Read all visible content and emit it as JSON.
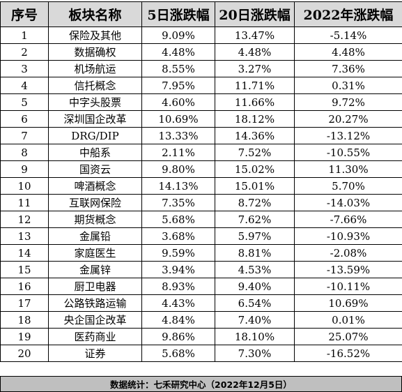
{
  "table": {
    "headers": [
      "序号",
      "板块名称",
      "5日涨跌幅",
      "20日涨跌幅",
      "2022年涨跌幅"
    ],
    "rows": [
      [
        "1",
        "保险及其他",
        "9.09%",
        "13.47%",
        "-5.14%"
      ],
      [
        "2",
        "数据确权",
        "4.48%",
        "4.48%",
        "4.48%"
      ],
      [
        "3",
        "机场航运",
        "8.55%",
        "3.27%",
        "7.36%"
      ],
      [
        "4",
        "信托概念",
        "7.95%",
        "11.71%",
        "0.31%"
      ],
      [
        "5",
        "中字头股票",
        "4.60%",
        "11.66%",
        "9.72%"
      ],
      [
        "6",
        "深圳国企改革",
        "10.69%",
        "18.12%",
        "20.27%"
      ],
      [
        "7",
        "DRG/DIP",
        "13.33%",
        "14.36%",
        "-13.12%"
      ],
      [
        "8",
        "中船系",
        "2.11%",
        "7.52%",
        "-10.55%"
      ],
      [
        "9",
        "国资云",
        "9.80%",
        "15.02%",
        "11.30%"
      ],
      [
        "10",
        "啤酒概念",
        "14.13%",
        "15.01%",
        "5.70%"
      ],
      [
        "11",
        "互联网保险",
        "7.35%",
        "8.72%",
        "-14.03%"
      ],
      [
        "12",
        "期货概念",
        "5.68%",
        "7.62%",
        "-7.66%"
      ],
      [
        "13",
        "金属铅",
        "3.68%",
        "5.97%",
        "-10.93%"
      ],
      [
        "14",
        "家庭医生",
        "9.59%",
        "8.81%",
        "-2.08%"
      ],
      [
        "15",
        "金属锌",
        "3.94%",
        "4.53%",
        "-13.59%"
      ],
      [
        "16",
        "厨卫电器",
        "8.93%",
        "9.40%",
        "-10.11%"
      ],
      [
        "17",
        "公路铁路运输",
        "4.43%",
        "6.54%",
        "10.69%"
      ],
      [
        "18",
        "央企国企改革",
        "4.84%",
        "7.40%",
        "0.01%"
      ],
      [
        "19",
        "医药商业",
        "9.86%",
        "18.10%",
        "25.07%"
      ],
      [
        "20",
        "证券",
        "5.68%",
        "7.30%",
        "-16.52%"
      ]
    ]
  },
  "footer": {
    "text": "数据统计：七禾研究中心（2022年12月5日）"
  },
  "colors": {
    "header_bg": "#d9d9d9",
    "footer_bg": "#bfbfbf",
    "grid_line": "#000000"
  }
}
